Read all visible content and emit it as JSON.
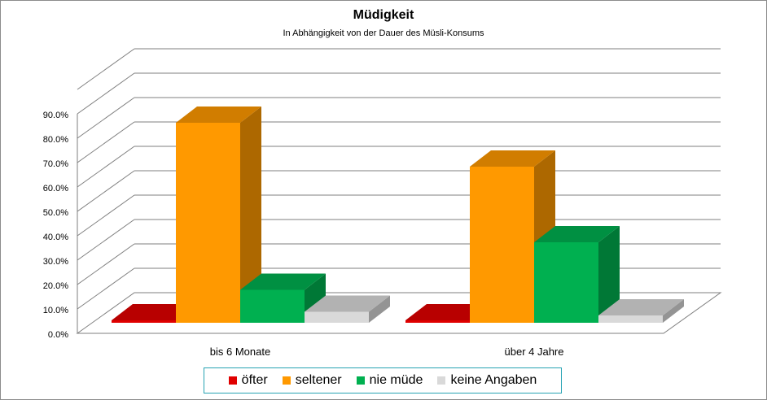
{
  "chart_data": {
    "type": "bar",
    "title": "Müdigkeit",
    "subtitle": "In Abhängigkeit von der  Dauer des Müsli-Konsums",
    "categories": [
      "bis 6 Monate",
      "über 4 Jahre"
    ],
    "series": [
      {
        "name": "öfter",
        "color": "#e00000",
        "values": [
          1.0,
          1.0
        ]
      },
      {
        "name": "seltener",
        "color": "#ff9900",
        "values": [
          82.0,
          64.0
        ]
      },
      {
        "name": "nie müde",
        "color": "#00b050",
        "values": [
          13.5,
          33.0
        ]
      },
      {
        "name": "keine Angaben",
        "color": "#d9d9d9",
        "values": [
          4.5,
          3.0
        ]
      }
    ],
    "ylim": [
      0,
      90
    ],
    "yticks": [
      "0.0%",
      "10.0%",
      "20.0%",
      "30.0%",
      "40.0%",
      "50.0%",
      "60.0%",
      "70.0%",
      "80.0%",
      "90.0%"
    ],
    "grid": true,
    "legend_position": "bottom",
    "three_d": true
  }
}
